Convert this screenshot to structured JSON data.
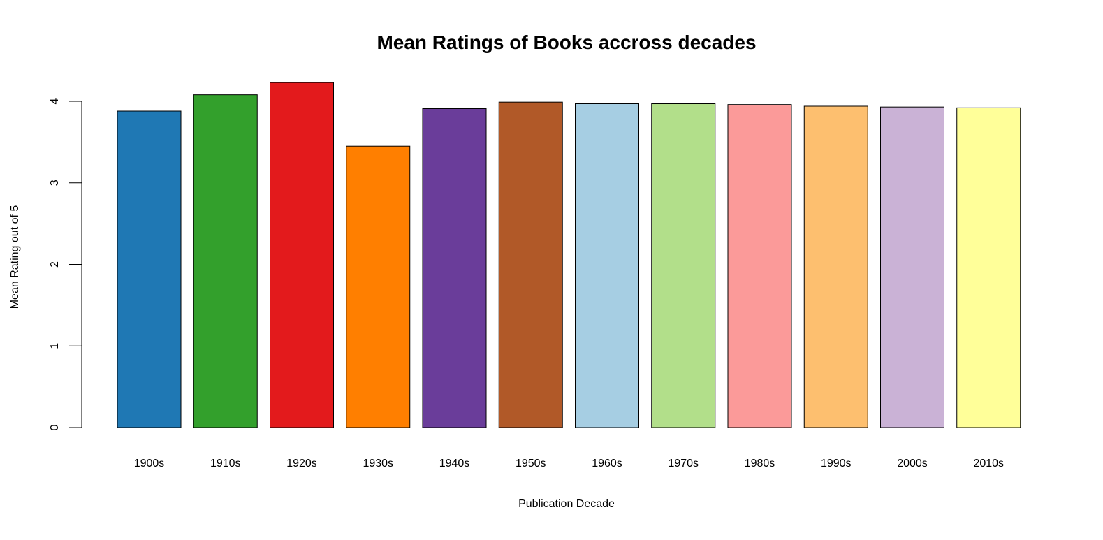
{
  "chart_data": {
    "type": "bar",
    "title": "Mean Ratings of Books accross decades",
    "xlabel": "Publication Decade",
    "ylabel": "Mean Rating out of 5",
    "ylim": [
      0,
      4.3
    ],
    "yticks": [
      0,
      1,
      2,
      3,
      4
    ],
    "categories": [
      "1900s",
      "1910s",
      "1920s",
      "1930s",
      "1940s",
      "1950s",
      "1960s",
      "1970s",
      "1980s",
      "1990s",
      "2000s",
      "2010s"
    ],
    "values": [
      3.88,
      4.08,
      4.23,
      3.45,
      3.91,
      3.99,
      3.97,
      3.97,
      3.96,
      3.94,
      3.93,
      3.92
    ],
    "colors": [
      "#1f78b4",
      "#33a02c",
      "#e31a1c",
      "#ff7f00",
      "#6a3d9a",
      "#b15928",
      "#a6cee3",
      "#b2df8a",
      "#fb9a99",
      "#fdbf6f",
      "#cab2d6",
      "#ffff99"
    ],
    "grid": false,
    "legend": "none"
  }
}
